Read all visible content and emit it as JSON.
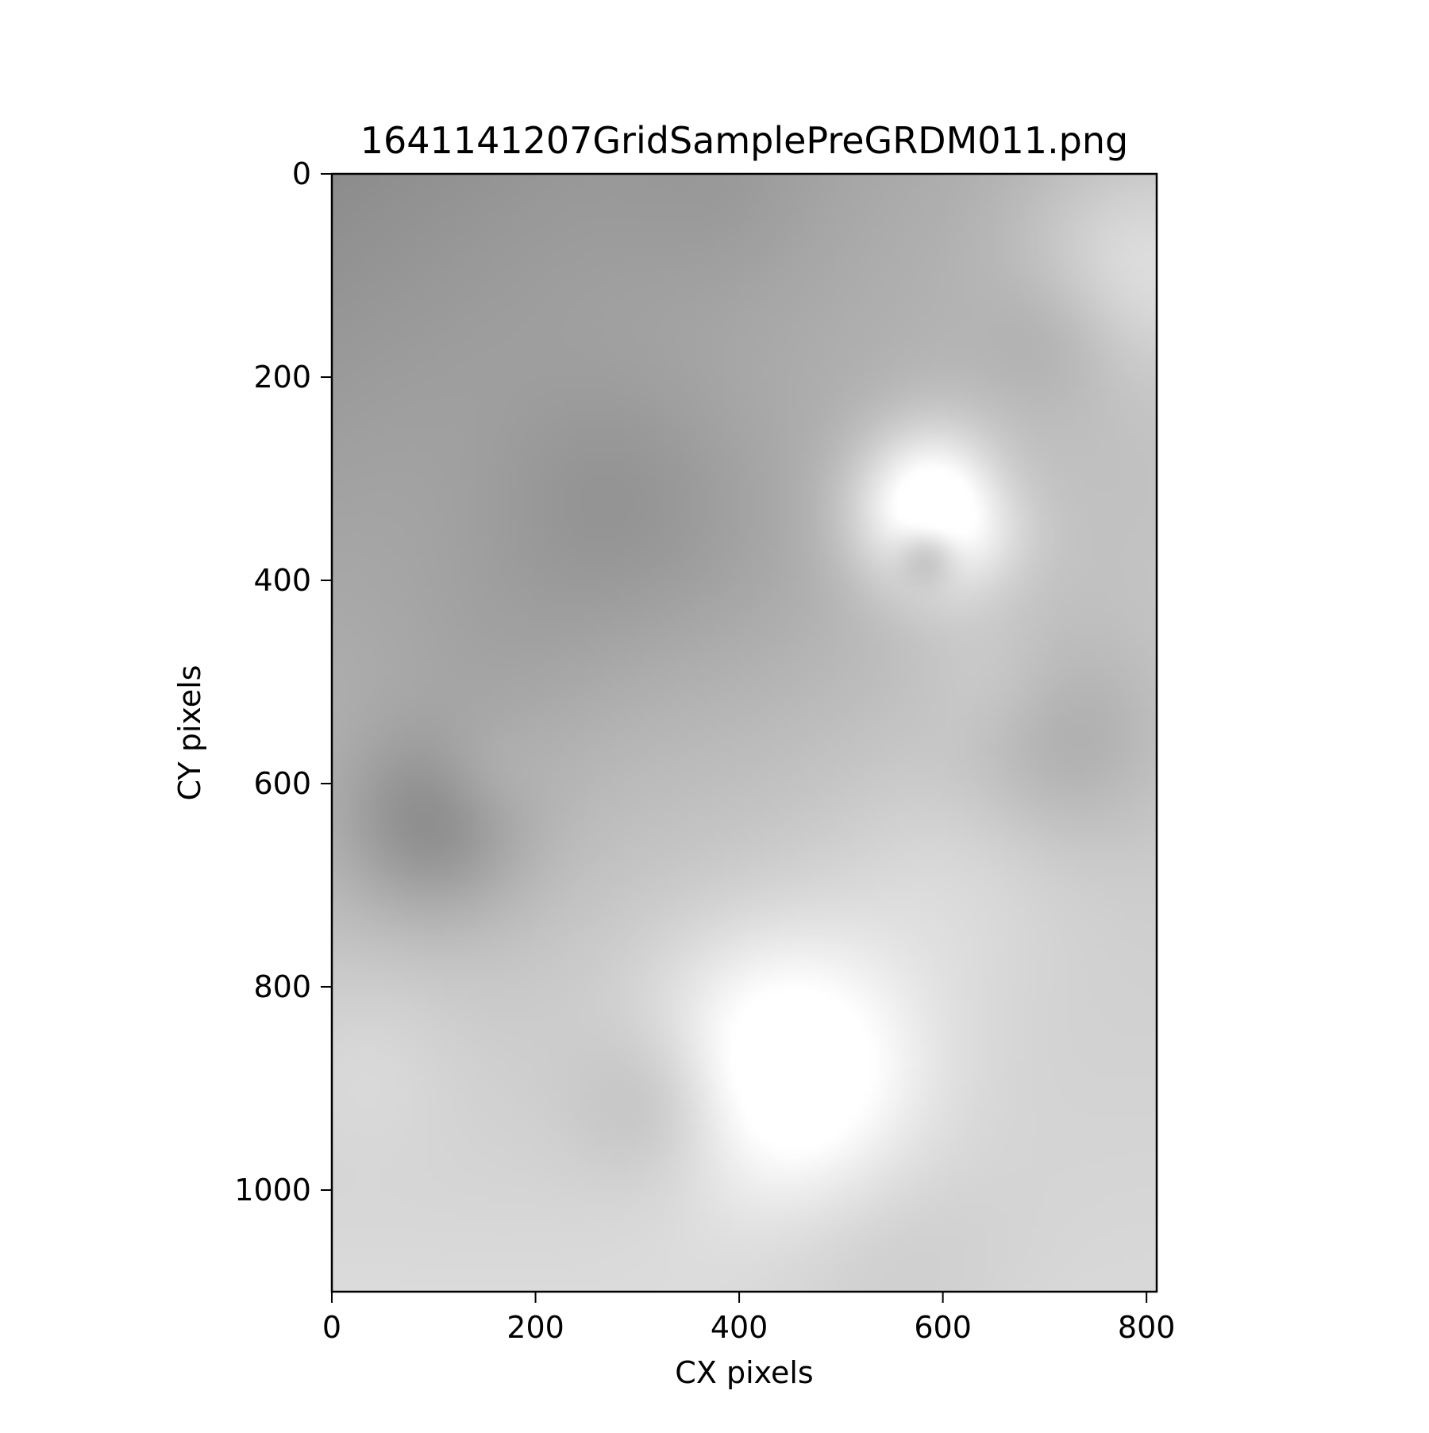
{
  "chart_data": {
    "type": "heatmap",
    "title": "1641141207GridSamplePreGRDM011.png",
    "xlabel": "CX pixels",
    "ylabel": "CY pixels",
    "xlim": [
      0,
      810
    ],
    "ylim": [
      1100,
      0
    ],
    "xticks": [
      0,
      200,
      400,
      600,
      800
    ],
    "yticks": [
      0,
      200,
      400,
      600,
      800,
      1000
    ],
    "colormap": "gray",
    "grid": false,
    "legend": "none",
    "intensity_min": 0.0,
    "intensity_max": 1.0,
    "baseline_gradient": {
      "top_left_value": 0.55,
      "top_right_value": 0.72,
      "bottom_left_value": 0.86,
      "bottom_right_value": 0.85
    },
    "features": [
      {
        "x": 270,
        "y": 320,
        "radius": 85,
        "delta": -0.07
      },
      {
        "x": 100,
        "y": 640,
        "radius": 65,
        "delta": -0.18
      },
      {
        "x": 170,
        "y": 470,
        "radius": 90,
        "delta": -0.05
      },
      {
        "x": 390,
        "y": 390,
        "radius": 110,
        "delta": -0.05
      },
      {
        "x": 595,
        "y": 330,
        "radius": 55,
        "delta": 0.4
      },
      {
        "x": 585,
        "y": 375,
        "radius": 22,
        "delta": -0.2
      },
      {
        "x": 645,
        "y": 305,
        "radius": 40,
        "delta": -0.06
      },
      {
        "x": 710,
        "y": 160,
        "radius": 50,
        "delta": -0.06
      },
      {
        "x": 790,
        "y": 90,
        "radius": 80,
        "delta": 0.14
      },
      {
        "x": 720,
        "y": 560,
        "radius": 70,
        "delta": -0.1
      },
      {
        "x": 650,
        "y": 500,
        "radius": 50,
        "delta": 0.05
      },
      {
        "x": 445,
        "y": 880,
        "radius": 95,
        "delta": 0.28
      },
      {
        "x": 325,
        "y": 915,
        "radius": 60,
        "delta": -0.12
      },
      {
        "x": 540,
        "y": 1070,
        "radius": 90,
        "delta": -0.05
      },
      {
        "x": 150,
        "y": 590,
        "radius": 40,
        "delta": 0.05
      },
      {
        "x": 380,
        "y": 20,
        "radius": 70,
        "delta": -0.03
      },
      {
        "x": 610,
        "y": 690,
        "radius": 90,
        "delta": 0.06
      },
      {
        "x": 30,
        "y": 870,
        "radius": 70,
        "delta": 0.05
      }
    ]
  }
}
